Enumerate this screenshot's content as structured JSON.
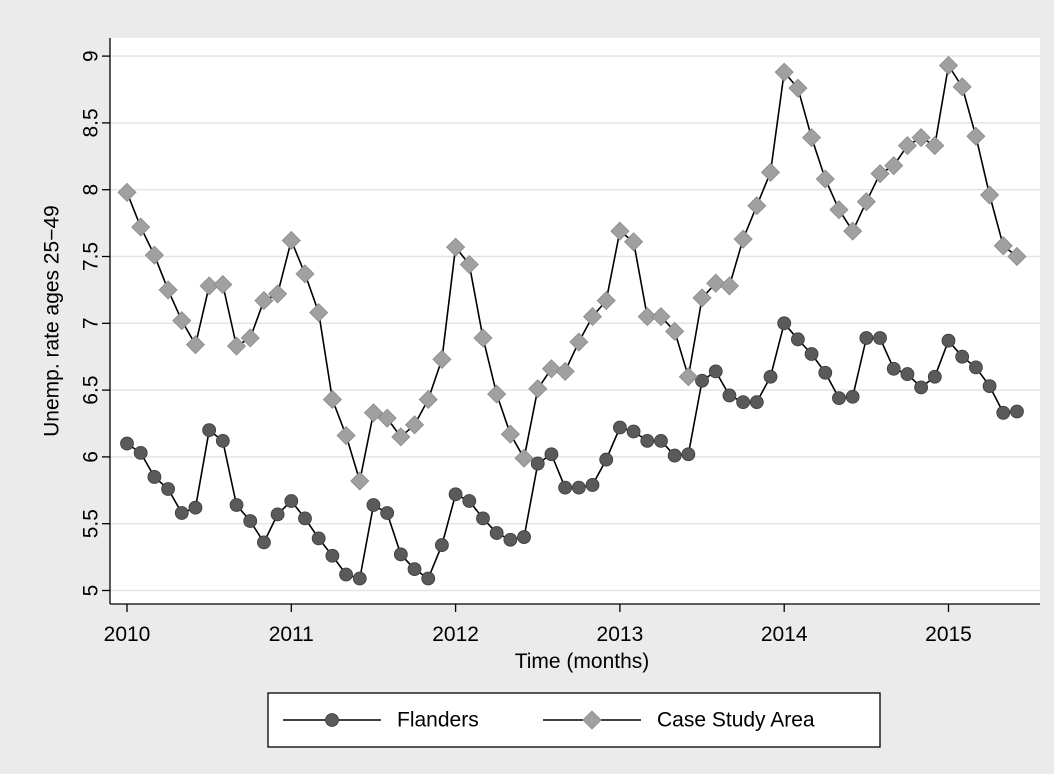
{
  "chart_data": {
    "type": "line",
    "xlabel": "Time (months)",
    "ylabel": "Unemp. rate ages 25−49",
    "xlim": [
      "2010-01",
      "2015-06"
    ],
    "ylim": [
      5,
      9
    ],
    "x_ticks": [
      "2010",
      "2011",
      "2012",
      "2013",
      "2014",
      "2015"
    ],
    "y_ticks": [
      "5",
      "5.5",
      "6",
      "6.5",
      "7",
      "7.5",
      "8",
      "8.5",
      "9"
    ],
    "grid": true,
    "legend_position": "bottom",
    "colors": {
      "outer_background": "#ebebeb",
      "plot_background": "#ffffff",
      "gridline": "#e4e4e4",
      "line": "#000000",
      "flanders_marker": "#5a5a5a",
      "case_study_marker": "#a0a0a0"
    },
    "x": [
      "2010-01",
      "2010-02",
      "2010-03",
      "2010-04",
      "2010-05",
      "2010-06",
      "2010-07",
      "2010-08",
      "2010-09",
      "2010-10",
      "2010-11",
      "2010-12",
      "2011-01",
      "2011-02",
      "2011-03",
      "2011-04",
      "2011-05",
      "2011-06",
      "2011-07",
      "2011-08",
      "2011-09",
      "2011-10",
      "2011-11",
      "2011-12",
      "2012-01",
      "2012-02",
      "2012-03",
      "2012-04",
      "2012-05",
      "2012-06",
      "2012-07",
      "2012-08",
      "2012-09",
      "2012-10",
      "2012-11",
      "2012-12",
      "2013-01",
      "2013-02",
      "2013-03",
      "2013-04",
      "2013-05",
      "2013-06",
      "2013-07",
      "2013-08",
      "2013-09",
      "2013-10",
      "2013-11",
      "2013-12",
      "2014-01",
      "2014-02",
      "2014-03",
      "2014-04",
      "2014-05",
      "2014-06",
      "2014-07",
      "2014-08",
      "2014-09",
      "2014-10",
      "2014-11",
      "2014-12",
      "2015-01",
      "2015-02",
      "2015-03",
      "2015-04",
      "2015-05",
      "2015-06"
    ],
    "series": [
      {
        "name": "Flanders",
        "marker": "circle",
        "values": [
          6.1,
          6.03,
          5.85,
          5.76,
          5.58,
          5.62,
          6.2,
          6.12,
          5.64,
          5.52,
          5.36,
          5.57,
          5.67,
          5.54,
          5.39,
          5.26,
          5.12,
          5.09,
          5.64,
          5.58,
          5.27,
          5.16,
          5.09,
          5.34,
          5.72,
          5.67,
          5.54,
          5.43,
          5.38,
          5.4,
          5.95,
          6.02,
          5.77,
          5.77,
          5.79,
          5.98,
          6.22,
          6.19,
          6.12,
          6.12,
          6.01,
          6.02,
          6.57,
          6.64,
          6.46,
          6.41,
          6.41,
          6.6,
          7.0,
          6.88,
          6.77,
          6.63,
          6.44,
          6.45,
          6.89,
          6.89,
          6.66,
          6.62,
          6.52,
          6.6,
          6.87,
          6.75,
          6.67,
          6.53,
          6.33,
          6.34
        ]
      },
      {
        "name": "Case Study Area",
        "marker": "diamond",
        "values": [
          7.98,
          7.72,
          7.51,
          7.25,
          7.02,
          6.84,
          7.28,
          7.29,
          6.83,
          6.89,
          7.17,
          7.22,
          7.62,
          7.37,
          7.08,
          6.43,
          6.16,
          5.82,
          6.33,
          6.29,
          6.15,
          6.24,
          6.43,
          6.73,
          7.57,
          7.44,
          6.89,
          6.47,
          6.17,
          5.99,
          6.51,
          6.66,
          6.64,
          6.86,
          7.05,
          7.17,
          7.69,
          7.61,
          7.05,
          7.05,
          6.94,
          6.6,
          7.19,
          7.3,
          7.28,
          7.63,
          7.88,
          8.13,
          8.88,
          8.76,
          8.39,
          8.08,
          7.85,
          7.69,
          7.91,
          8.12,
          8.18,
          8.33,
          8.39,
          8.33,
          8.93,
          8.77,
          8.4,
          7.96,
          7.58,
          7.5
        ]
      }
    ]
  }
}
